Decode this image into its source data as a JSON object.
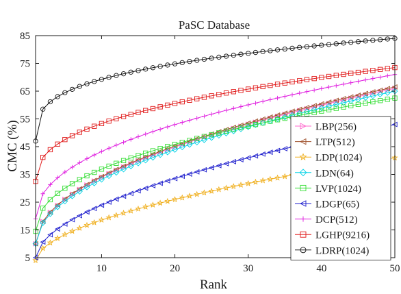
{
  "chart_data": {
    "type": "line",
    "title": "PaSC Database",
    "xlabel": "Rank",
    "ylabel": "CMC (%)",
    "xlim": [
      1,
      50
    ],
    "ylim": [
      5,
      85
    ],
    "xticks": [
      10,
      20,
      30,
      40,
      50
    ],
    "yticks": [
      5,
      15,
      25,
      35,
      45,
      55,
      65,
      75,
      85
    ],
    "grid": false,
    "legend_position": "lower-right",
    "series": [
      {
        "name": "LBP(256)",
        "color": "#ff66cc",
        "marker": "triangle-right",
        "start": 10,
        "end": 66,
        "exponent": 0.5
      },
      {
        "name": "LTP(512)",
        "color": "#a0522d",
        "marker": "triangle-left",
        "start": 10,
        "end": 66.5,
        "exponent": 0.5
      },
      {
        "name": "LDP(1024)",
        "color": "#f0b020",
        "marker": "star",
        "start": 4,
        "end": 41,
        "exponent": 0.55
      },
      {
        "name": "LDN(64)",
        "color": "#00d2e6",
        "marker": "diamond",
        "start": 10,
        "end": 65,
        "exponent": 0.51
      },
      {
        "name": "LVP(1024)",
        "color": "#33dd33",
        "marker": "square",
        "start": 14.5,
        "end": 62.5,
        "exponent": 0.45
      },
      {
        "name": "LDGP(65)",
        "color": "#1c1ccc",
        "marker": "triangle-left",
        "start": 5,
        "end": 53,
        "exponent": 0.55
      },
      {
        "name": "DCP(512)",
        "color": "#e020e0",
        "marker": "plus",
        "start": 19,
        "end": 71,
        "exponent": 0.45
      },
      {
        "name": "LGHP(9216)",
        "color": "#e01818",
        "marker": "square",
        "start": 32.5,
        "end": 73.5,
        "exponent": 0.4
      },
      {
        "name": "LDRP(1024)",
        "color": "#111111",
        "marker": "circle",
        "start": 47,
        "end": 84,
        "exponent": 0.3
      }
    ]
  }
}
